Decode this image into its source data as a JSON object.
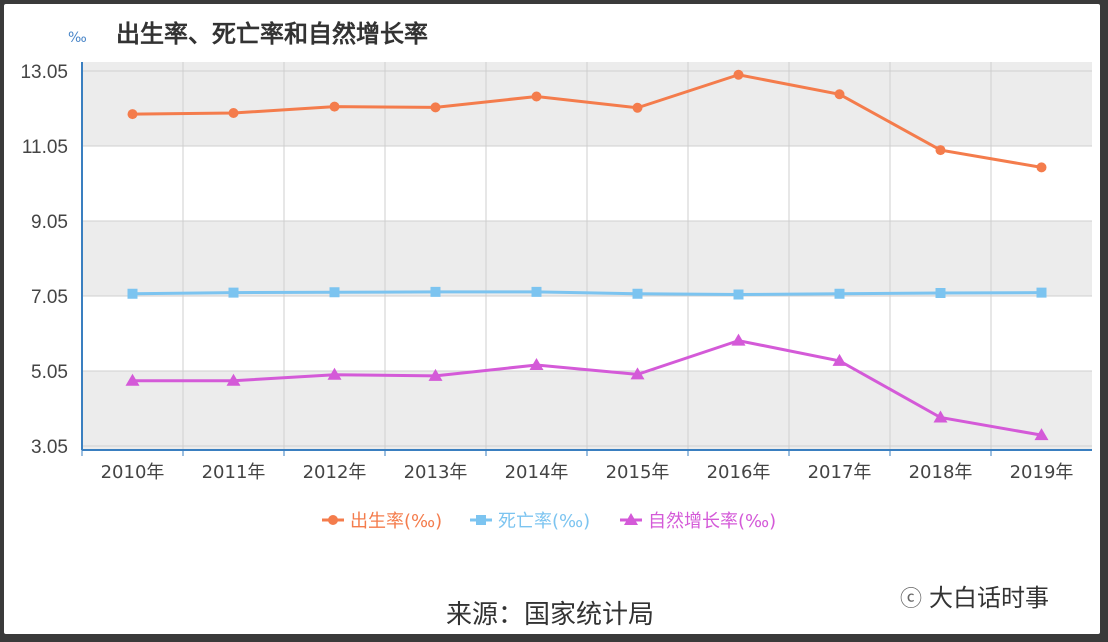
{
  "chart_data": {
    "type": "line",
    "title": "出生率、死亡率和自然增长率",
    "ylabel": "‰",
    "xlabel": "",
    "categories": [
      "2010年",
      "2011年",
      "2012年",
      "2013年",
      "2014年",
      "2015年",
      "2016年",
      "2017年",
      "2018年",
      "2019年"
    ],
    "yticks": [
      "3.05",
      "5.05",
      "7.05",
      "9.05",
      "11.05",
      "13.05"
    ],
    "ylim": [
      3.05,
      13.05
    ],
    "grid": true,
    "legend_position": "bottom",
    "series": [
      {
        "name": "出生率(‰)",
        "color": "#f47c4c",
        "marker": "circle",
        "values": [
          11.9,
          11.93,
          12.1,
          12.08,
          12.37,
          12.07,
          12.95,
          12.43,
          10.94,
          10.48
        ]
      },
      {
        "name": "死亡率(‰)",
        "color": "#7cc4f0",
        "marker": "square",
        "values": [
          7.11,
          7.14,
          7.15,
          7.16,
          7.16,
          7.11,
          7.09,
          7.11,
          7.13,
          7.14
        ]
      },
      {
        "name": "自然增长率(‰)",
        "color": "#d45ad8",
        "marker": "triangle",
        "values": [
          4.79,
          4.79,
          4.95,
          4.92,
          5.21,
          4.96,
          5.86,
          5.32,
          3.81,
          3.34
        ]
      }
    ]
  },
  "source": "来源：国家统计局",
  "watermark": "大白话时事"
}
